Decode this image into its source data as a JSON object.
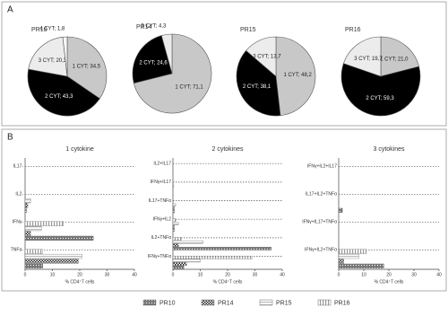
{
  "panels": [
    "A",
    "B"
  ],
  "chart_data": [
    {
      "type": "pie",
      "title": "PR10",
      "values": [
        34.5,
        43.3,
        20.3,
        1.8
      ],
      "value_labels": [
        "1 CYT; 34,5",
        "2 CYT; 43,3",
        "3 CYT; 20,3",
        "4 CYT; 1,8"
      ],
      "colors": [
        "#c8c8c8",
        "#000000",
        "#ececec",
        "#f7f7f7"
      ]
    },
    {
      "type": "pie",
      "title": "PR14",
      "values": [
        71.1,
        24.6,
        4.3
      ],
      "value_labels": [
        "1 CYT; 71,1",
        "2 CYT; 24,6",
        "3 CYT; 4,3"
      ],
      "colors": [
        "#c8c8c8",
        "#000000",
        "#ececec"
      ]
    },
    {
      "type": "pie",
      "title": "PR15",
      "values": [
        48.2,
        38.1,
        13.7
      ],
      "value_labels": [
        "1 CYT; 48,2",
        "2 CYT; 38,1",
        "3 CYT; 13,7"
      ],
      "colors": [
        "#c8c8c8",
        "#000000",
        "#ececec"
      ]
    },
    {
      "type": "pie",
      "title": "PR16",
      "values": [
        21.0,
        59.3,
        19.7
      ],
      "value_labels": [
        "1 CYT; 21,0",
        "2 CYT; 59,3",
        "3 CYT; 19,7"
      ],
      "colors": [
        "#c8c8c8",
        "#000000",
        "#ececec"
      ]
    },
    {
      "type": "hbar",
      "title": "1 cytokine",
      "xlabel": "% CD4⁺T cells",
      "categories": [
        "IL17-",
        "IL2-",
        "IFNγ-",
        "TNFα-"
      ],
      "xlim": [
        0,
        40
      ],
      "xticks": [
        0,
        10,
        20,
        30,
        40
      ],
      "series": [
        {
          "name": "PR10",
          "color": "#777777",
          "pattern": "dots",
          "values": [
            0,
            0.5,
            25,
            6.5
          ]
        },
        {
          "name": "PR14",
          "color": "#222222",
          "pattern": "check",
          "values": [
            0,
            1,
            2,
            19.5
          ]
        },
        {
          "name": "PR15",
          "color": "#bbbbbb",
          "pattern": "hstripe",
          "values": [
            0,
            2,
            6,
            20.8
          ]
        },
        {
          "name": "PR16",
          "color": "#999999",
          "pattern": "vstripe",
          "values": [
            0,
            0,
            14,
            6.5
          ]
        }
      ]
    },
    {
      "type": "hbar",
      "title": "2 cytokines",
      "xlabel": "% CD4⁺T cells",
      "categories": [
        "IL2+IL17",
        "IFNγ+IL17",
        "IL17+TNFα",
        "IFNγ+IL2",
        "IL2+TNFα",
        "IFNγ+TNFα"
      ],
      "xlim": [
        0,
        40
      ],
      "xticks": [
        0,
        10,
        20,
        30,
        40
      ],
      "series": [
        {
          "name": "PR10",
          "color": "#777777",
          "pattern": "dots",
          "values": [
            0,
            0,
            0.5,
            0.5,
            36,
            4
          ]
        },
        {
          "name": "PR14",
          "color": "#222222",
          "pattern": "check",
          "values": [
            0,
            0,
            0.5,
            0.5,
            2,
            5
          ]
        },
        {
          "name": "PR15",
          "color": "#bbbbbb",
          "pattern": "hstripe",
          "values": [
            0,
            0.3,
            1,
            2,
            11,
            10
          ]
        },
        {
          "name": "PR16",
          "color": "#999999",
          "pattern": "vstripe",
          "values": [
            0,
            0,
            0,
            1,
            3,
            29
          ]
        }
      ]
    },
    {
      "type": "hbar",
      "title": "3 cytokines",
      "xlabel": "% CD4⁺T cells",
      "categories": [
        "IFNγ+IL2+IL17",
        "IL17+IL2+TNFα",
        "IFNγ+IL17+TNFα",
        "IFNγ+IL2+TNFα"
      ],
      "xlim": [
        0,
        40
      ],
      "xticks": [
        0,
        10,
        20,
        30,
        40
      ],
      "series": [
        {
          "name": "PR10",
          "color": "#777777",
          "pattern": "dots",
          "values": [
            0,
            1.5,
            0,
            18
          ]
        },
        {
          "name": "PR14",
          "color": "#222222",
          "pattern": "check",
          "values": [
            0,
            0,
            0,
            2
          ]
        },
        {
          "name": "PR15",
          "color": "#bbbbbb",
          "pattern": "hstripe",
          "values": [
            0,
            0,
            0,
            8
          ]
        },
        {
          "name": "PR16",
          "color": "#999999",
          "pattern": "vstripe",
          "values": [
            0,
            0,
            0,
            11
          ]
        }
      ]
    }
  ]
}
